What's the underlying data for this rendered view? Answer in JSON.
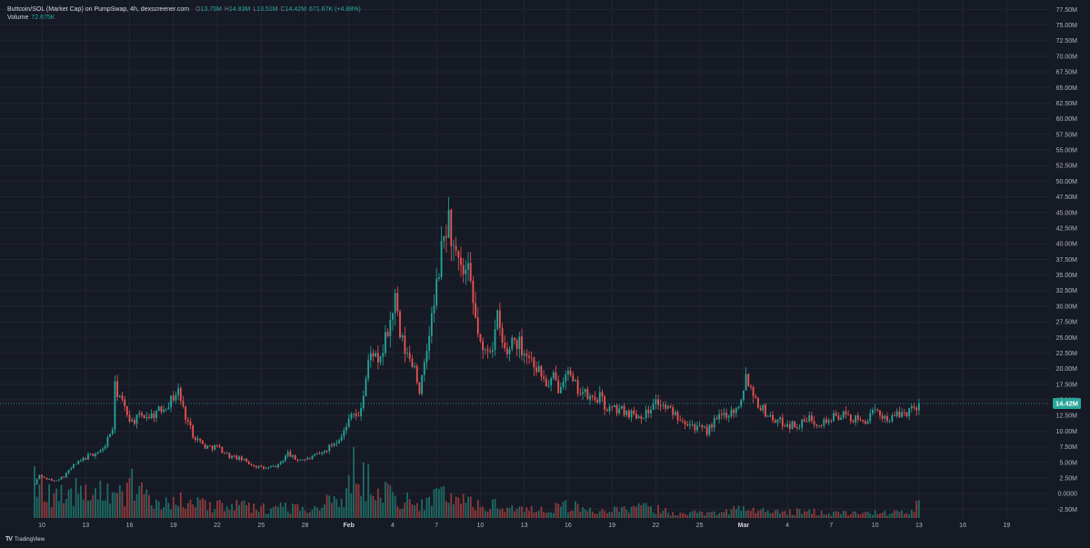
{
  "header": {
    "title": "Buttcoin/SOL (Market Cap) on PumpSwap, 4h, dexscreener.com",
    "ohlc": [
      {
        "key": "O",
        "value": "13.75M"
      },
      {
        "key": "H",
        "value": "14.83M"
      },
      {
        "key": "L",
        "value": "13.51M"
      },
      {
        "key": "C",
        "value": "14.42M"
      }
    ],
    "change": "671.67K (+4.88%)",
    "volume_label": "Volume",
    "volume_value": "72.675K"
  },
  "brand": {
    "name": "TradingView",
    "icon": "tradingview-logo-icon"
  },
  "colors": {
    "background": "#161a25",
    "grid": "#232632",
    "up": "#26a69a",
    "down": "#ef5350",
    "volume_up": "#1e6b64",
    "volume_down": "#8f3a3b",
    "axis_text": "#b2b5be",
    "last_price_bg": "#26a69a"
  },
  "chart_data": {
    "type": "candlestick",
    "title": "Buttcoin/SOL (Market Cap) on PumpSwap, 4h, dexscreener.com",
    "timeframe": "4h",
    "y_axis": {
      "ticks": [
        "-2.50M",
        "0.0000",
        "2.50M",
        "5.00M",
        "7.50M",
        "10.00M",
        "12.50M",
        "15.00M",
        "17.50M",
        "20.00M",
        "22.50M",
        "25.00M",
        "27.50M",
        "30.00M",
        "32.50M",
        "35.00M",
        "37.50M",
        "40.00M",
        "42.50M",
        "45.00M",
        "47.50M",
        "50.00M",
        "52.50M",
        "55.00M",
        "57.50M",
        "60.00M",
        "62.50M",
        "65.00M",
        "67.50M",
        "70.00M",
        "72.50M",
        "75.00M",
        "77.50M"
      ],
      "range": [
        -3.9,
        79
      ],
      "units": "M"
    },
    "x_axis": {
      "ticks": [
        "10",
        "13",
        "16",
        "19",
        "22",
        "25",
        "28",
        "Feb",
        "4",
        "7",
        "10",
        "13",
        "16",
        "19",
        "22",
        "25",
        "Mar",
        "4",
        "7",
        "10",
        "13",
        "16",
        "19"
      ],
      "tick_positions_index": [
        3,
        21,
        39,
        57,
        75,
        93,
        111,
        129,
        147,
        165,
        183,
        201,
        219,
        237,
        255,
        273,
        291,
        309,
        327,
        345,
        363,
        381,
        399
      ]
    },
    "last_price": {
      "label": "14.42M",
      "value": 14.42
    },
    "series": [
      {
        "name": "Market Cap",
        "anchors": [
          [
            0,
            1.5
          ],
          [
            2,
            3.0
          ],
          [
            4,
            2.5
          ],
          [
            8,
            2.0
          ],
          [
            12,
            2.8
          ],
          [
            16,
            4.5
          ],
          [
            22,
            6.0
          ],
          [
            28,
            7.0
          ],
          [
            32,
            10.5
          ],
          [
            33,
            17.0
          ],
          [
            35,
            15.5
          ],
          [
            37,
            13.5
          ],
          [
            40,
            11.5
          ],
          [
            44,
            12.5
          ],
          [
            48,
            12.5
          ],
          [
            52,
            13.5
          ],
          [
            56,
            15.0
          ],
          [
            59,
            16.5
          ],
          [
            61,
            13.5
          ],
          [
            65,
            9.5
          ],
          [
            70,
            7.5
          ],
          [
            75,
            7.5
          ],
          [
            80,
            6.0
          ],
          [
            85,
            5.5
          ],
          [
            90,
            4.5
          ],
          [
            95,
            4.0
          ],
          [
            100,
            4.5
          ],
          [
            104,
            6.5
          ],
          [
            107,
            5.5
          ],
          [
            112,
            5.5
          ],
          [
            118,
            6.5
          ],
          [
            124,
            8.5
          ],
          [
            128,
            10.5
          ],
          [
            130,
            13.5
          ],
          [
            133,
            12.0
          ],
          [
            135,
            16.0
          ],
          [
            137,
            21.0
          ],
          [
            139,
            23.0
          ],
          [
            141,
            20.0
          ],
          [
            143,
            23.0
          ],
          [
            146,
            27.5
          ],
          [
            148,
            31.0
          ],
          [
            150,
            25.0
          ],
          [
            153,
            22.0
          ],
          [
            156,
            20.5
          ],
          [
            158,
            16.5
          ],
          [
            160,
            20.0
          ],
          [
            162,
            26.0
          ],
          [
            164,
            30.0
          ],
          [
            166,
            36.0
          ],
          [
            168,
            41.0
          ],
          [
            170,
            44.0
          ],
          [
            172,
            38.5
          ],
          [
            174,
            36.0
          ],
          [
            176,
            35.0
          ],
          [
            178,
            35.0
          ],
          [
            180,
            30.0
          ],
          [
            182,
            26.0
          ],
          [
            184,
            22.0
          ],
          [
            186,
            23.5
          ],
          [
            188,
            24.0
          ],
          [
            190,
            28.0
          ],
          [
            192,
            24.0
          ],
          [
            194,
            22.0
          ],
          [
            196,
            25.0
          ],
          [
            199,
            24.0
          ],
          [
            202,
            22.5
          ],
          [
            205,
            21.0
          ],
          [
            208,
            19.0
          ],
          [
            211,
            17.0
          ],
          [
            213,
            18.5
          ],
          [
            215,
            17.0
          ],
          [
            218,
            20.0
          ],
          [
            221,
            17.5
          ],
          [
            224,
            16.5
          ],
          [
            227,
            15.5
          ],
          [
            229,
            15.0
          ],
          [
            232,
            15.5
          ],
          [
            234,
            14.0
          ],
          [
            236,
            13.5
          ],
          [
            240,
            13.5
          ],
          [
            244,
            13.0
          ],
          [
            248,
            12.5
          ],
          [
            252,
            13.0
          ],
          [
            254,
            15.0
          ],
          [
            256,
            14.5
          ],
          [
            260,
            13.5
          ],
          [
            264,
            12.5
          ],
          [
            268,
            11.5
          ],
          [
            272,
            10.5
          ],
          [
            276,
            10.0
          ],
          [
            279,
            11.5
          ],
          [
            282,
            12.5
          ],
          [
            285,
            13.0
          ],
          [
            288,
            13.5
          ],
          [
            290,
            15.5
          ],
          [
            292,
            19.0
          ],
          [
            294,
            17.0
          ],
          [
            297,
            14.5
          ],
          [
            300,
            13.0
          ],
          [
            303,
            12.0
          ],
          [
            306,
            11.5
          ],
          [
            310,
            11.0
          ],
          [
            314,
            11.0
          ],
          [
            318,
            12.0
          ],
          [
            321,
            11.5
          ],
          [
            324,
            11.5
          ],
          [
            327,
            12.0
          ],
          [
            330,
            12.5
          ],
          [
            333,
            12.5
          ],
          [
            336,
            12.0
          ],
          [
            339,
            11.5
          ],
          [
            342,
            12.0
          ],
          [
            345,
            13.0
          ],
          [
            348,
            12.5
          ],
          [
            351,
            12.0
          ],
          [
            354,
            12.5
          ],
          [
            357,
            13.0
          ],
          [
            360,
            13.5
          ],
          [
            363,
            14.42
          ]
        ]
      },
      {
        "name": "Volume",
        "peaks": [
          [
            0,
            7.8
          ],
          [
            5,
            4.0
          ],
          [
            10,
            4.2
          ],
          [
            15,
            4.5
          ],
          [
            20,
            4.0
          ],
          [
            25,
            3.5
          ],
          [
            33,
            5.2
          ],
          [
            36,
            3.5
          ],
          [
            40,
            5.0
          ],
          [
            45,
            3.2
          ],
          [
            55,
            3.0
          ],
          [
            62,
            2.5
          ],
          [
            70,
            2.0
          ],
          [
            80,
            2.0
          ],
          [
            95,
            1.5
          ],
          [
            100,
            2.0
          ],
          [
            110,
            1.5
          ],
          [
            118,
            2.2
          ],
          [
            127,
            3.0
          ],
          [
            131,
            7.5
          ],
          [
            134,
            8.0
          ],
          [
            138,
            4.8
          ],
          [
            143,
            6.0
          ],
          [
            147,
            3.0
          ],
          [
            150,
            3.0
          ],
          [
            155,
            2.5
          ],
          [
            160,
            2.8
          ],
          [
            165,
            3.0
          ],
          [
            170,
            4.5
          ],
          [
            172,
            3.0
          ],
          [
            178,
            2.5
          ],
          [
            185,
            2.2
          ],
          [
            190,
            2.0
          ],
          [
            200,
            1.5
          ],
          [
            210,
            1.5
          ],
          [
            218,
            2.0
          ],
          [
            230,
            1.2
          ],
          [
            243,
            1.2
          ],
          [
            250,
            1.8
          ],
          [
            260,
            1.0
          ],
          [
            272,
            0.8
          ],
          [
            292,
            1.5
          ],
          [
            300,
            1.0
          ],
          [
            315,
            1.0
          ],
          [
            330,
            0.8
          ],
          [
            345,
            0.8
          ],
          [
            360,
            0.9
          ],
          [
            363,
            2.5
          ]
        ]
      }
    ],
    "grid": true
  }
}
